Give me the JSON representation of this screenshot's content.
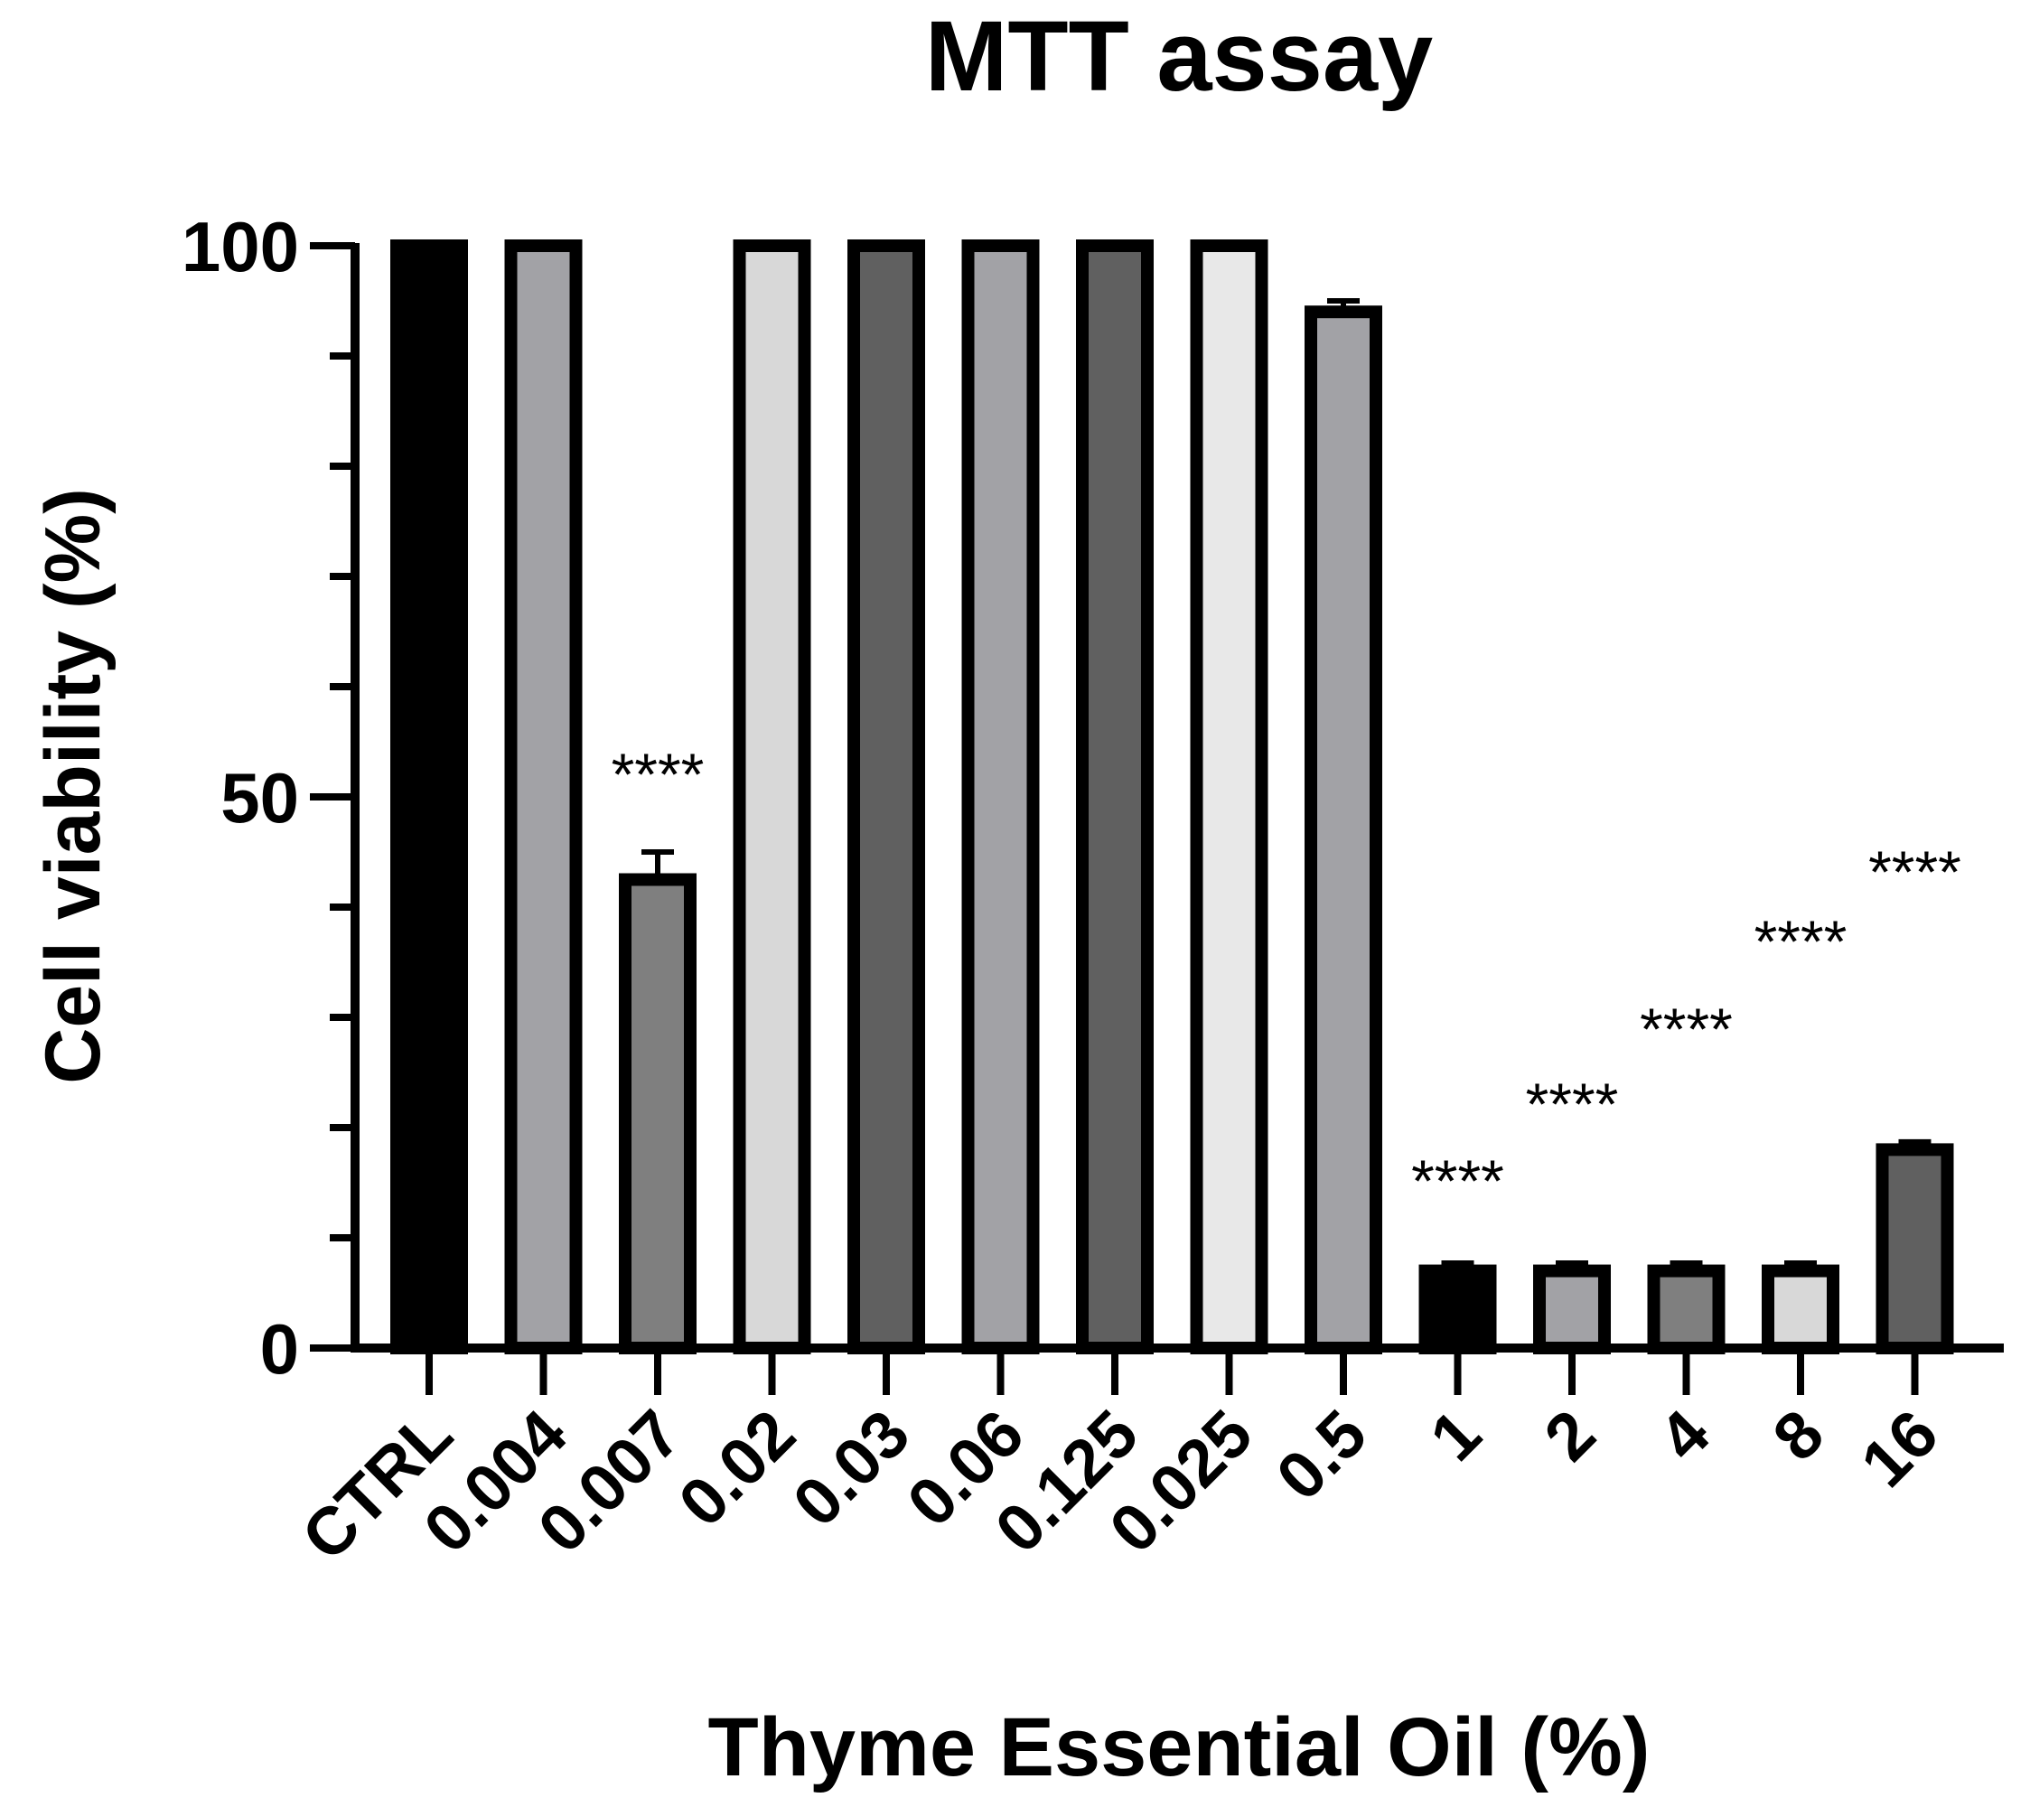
{
  "chart_data": {
    "type": "bar",
    "title": "MTT assay",
    "xlabel": "Thyme Essential Oil (%)",
    "ylabel": "Cell viability (%)",
    "ylim": [
      0,
      100
    ],
    "yticks_major": [
      0,
      50,
      100
    ],
    "yticks_minor_step": 10,
    "categories": [
      "CTRL",
      "0.004",
      "0.007",
      "0.02",
      "0.03",
      "0.06",
      "0.125",
      "0.025",
      "0.5",
      "1",
      "2",
      "4",
      "8",
      "16"
    ],
    "values": [
      100,
      100,
      42.5,
      100,
      100,
      100,
      100,
      100,
      94,
      7,
      7,
      7,
      7,
      18
    ],
    "errors": [
      0,
      0,
      2.5,
      0,
      0,
      0,
      0,
      0,
      1,
      0.7,
      0.7,
      0.7,
      0.7,
      0.7
    ],
    "significance": [
      "",
      "",
      "****",
      "",
      "",
      "",
      "",
      "",
      "",
      "****",
      "****",
      "****",
      "****",
      "****"
    ],
    "bar_colors": [
      "#000000",
      "#a2a2a6",
      "#7f7f7f",
      "#d8d8d8",
      "#606060",
      "#a2a2a6",
      "#606060",
      "#e8e8e8",
      "#a2a2a6",
      "#000000",
      "#a2a2a6",
      "#7f7f7f",
      "#d8d8d8",
      "#606060"
    ],
    "outline_color": "#000000",
    "grid": false,
    "legend": "none"
  }
}
